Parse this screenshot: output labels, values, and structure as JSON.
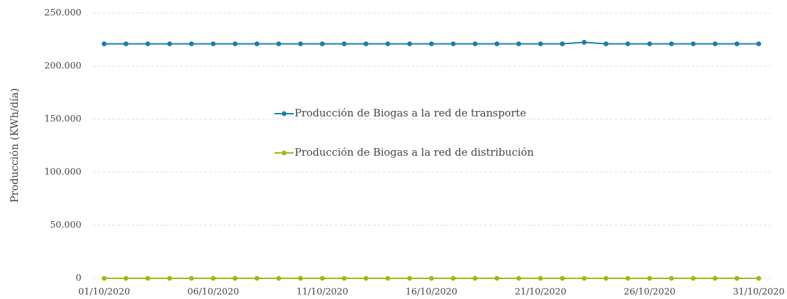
{
  "chart_data": {
    "type": "line",
    "y_label": "Producción (KWh/día)",
    "categories": [
      "01/10/2020",
      null,
      null,
      null,
      null,
      "06/10/2020",
      null,
      null,
      null,
      null,
      "11/10/2020",
      null,
      null,
      null,
      null,
      "16/10/2020",
      null,
      null,
      null,
      null,
      "21/10/2020",
      null,
      null,
      null,
      null,
      "26/10/2020",
      null,
      null,
      null,
      null,
      "31/10/2020"
    ],
    "series": [
      {
        "name": "Producción de Biogas a la red de transporte",
        "color": "#1b7fa8",
        "values": [
          221000,
          221000,
          221000,
          221000,
          221000,
          221000,
          221000,
          221000,
          221000,
          221000,
          221000,
          221000,
          221000,
          221000,
          221000,
          221000,
          221000,
          221000,
          221000,
          221000,
          221000,
          221000,
          222500,
          221000,
          221000,
          221000,
          221000,
          221000,
          221000,
          221000,
          221000
        ]
      },
      {
        "name": "Producción de Biogas a la red de distribución",
        "color": "#9cba16",
        "values": [
          0,
          0,
          0,
          0,
          0,
          0,
          0,
          0,
          0,
          0,
          0,
          0,
          0,
          0,
          0,
          0,
          0,
          0,
          0,
          0,
          0,
          0,
          0,
          0,
          0,
          0,
          0,
          0,
          0,
          0,
          0
        ]
      }
    ],
    "ylim": [
      0,
      250000
    ],
    "yticks": [
      0,
      {
        "value": 50000,
        "label": "50.000"
      },
      {
        "value": 100000,
        "label": "100.000"
      },
      {
        "value": 150000,
        "label": "150.000"
      },
      {
        "value": 200000,
        "label": "200.000"
      },
      {
        "value": 250000,
        "label": "250.000"
      }
    ],
    "grid": true,
    "legend": "center"
  }
}
